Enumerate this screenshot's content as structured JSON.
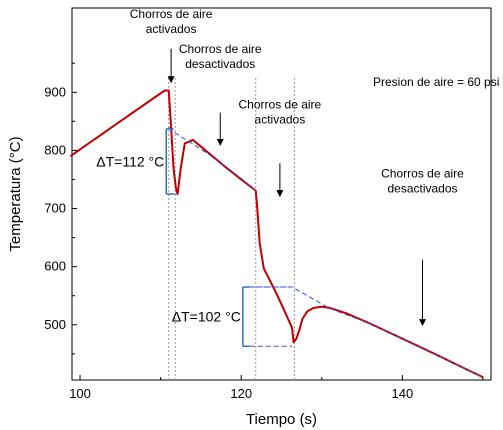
{
  "chart_data": {
    "type": "line",
    "xlabel": "Tiempo (s)",
    "ylabel": "Temperatura (°C)",
    "xlim": [
      99,
      151
    ],
    "ylim": [
      405,
      1045
    ],
    "xticks": [
      100,
      120,
      140
    ],
    "yticks": [
      500,
      600,
      700,
      800,
      900
    ],
    "grid": false,
    "colors": {
      "measured": "#c00000",
      "fitted": "#3b4fc9",
      "bracket": "#2f6fc0",
      "markers": "#999999",
      "arrows": "#000000"
    },
    "series": [
      {
        "style": "solid",
        "color": "#c00000",
        "x": [
          98.8,
          105,
          110.5,
          111.0,
          111.3,
          111.6,
          111.9,
          112.1,
          112.5,
          113.0,
          114.0,
          116.0,
          118.0,
          120.0,
          121.8,
          122.0,
          122.3,
          122.8,
          123.5,
          124.5,
          125.5,
          126.3,
          126.5,
          126.8,
          127.2,
          127.6,
          128.2,
          129.0,
          130.0,
          131.0,
          133.0,
          136.0,
          140.0,
          144.0,
          148.0,
          150.0
        ],
        "y": [
          790,
          850,
          903,
          903,
          840,
          770,
          735,
          725,
          770,
          812,
          818,
          795,
          772,
          750,
          731,
          700,
          640,
          597,
          578,
          550,
          520,
          495,
          470,
          475,
          490,
          510,
          523,
          529,
          531,
          529,
          520,
          502,
          476,
          450,
          423,
          410
        ]
      },
      {
        "style": "dashed",
        "color": "#3b4fc9",
        "x": [
          111.0,
          112.0,
          114.0,
          116.0,
          118.0,
          120.0,
          121.8
        ],
        "y": [
          840,
          828,
          811,
          793,
          773,
          752,
          731
        ]
      },
      {
        "style": "dashed",
        "color": "#3b4fc9",
        "x": [
          121.8,
          126.3,
          131.0,
          136.0,
          140.0,
          144.0,
          148.0,
          150.0
        ],
        "y": [
          565,
          565,
          528,
          502,
          476,
          450,
          423,
          410
        ]
      }
    ],
    "reference_lines_x": [
      111.0,
      111.8,
      121.8,
      126.6
    ],
    "brackets": [
      {
        "label": "ΔT=112 °C",
        "x": 110.7,
        "y_top": 837,
        "y_bottom": 725,
        "x_end_top": 111.3,
        "x_end_bottom": 112.1
      },
      {
        "label": "ΔT=102 °C",
        "x": 120.2,
        "y_top": 565,
        "y_bottom": 463,
        "x_end_top": 126.3,
        "x_end_bottom": 126.3
      }
    ],
    "annotations": [
      {
        "lines": [
          "Chorros de aire",
          "activados"
        ],
        "x": 111.3,
        "y": 1028,
        "arrow_from": 975,
        "arrow_to": 918
      },
      {
        "lines": [
          "Chorros de aire",
          "desactivados"
        ],
        "x": 117.4,
        "y": 968,
        "arrow_from": 865,
        "arrow_to": 810
      },
      {
        "lines": [
          "Chorros de aire",
          "activados"
        ],
        "x": 124.8,
        "y": 872,
        "arrow_from": 778,
        "arrow_to": 722
      },
      {
        "lines": [
          "Chorros de aire",
          "desactivados"
        ],
        "x": 142.5,
        "y": 753,
        "arrow_from": 612,
        "arrow_to": 500
      },
      {
        "lines": [
          "Presion de aire = 60 psi"
        ],
        "x": 144.2,
        "y": 911
      }
    ]
  }
}
